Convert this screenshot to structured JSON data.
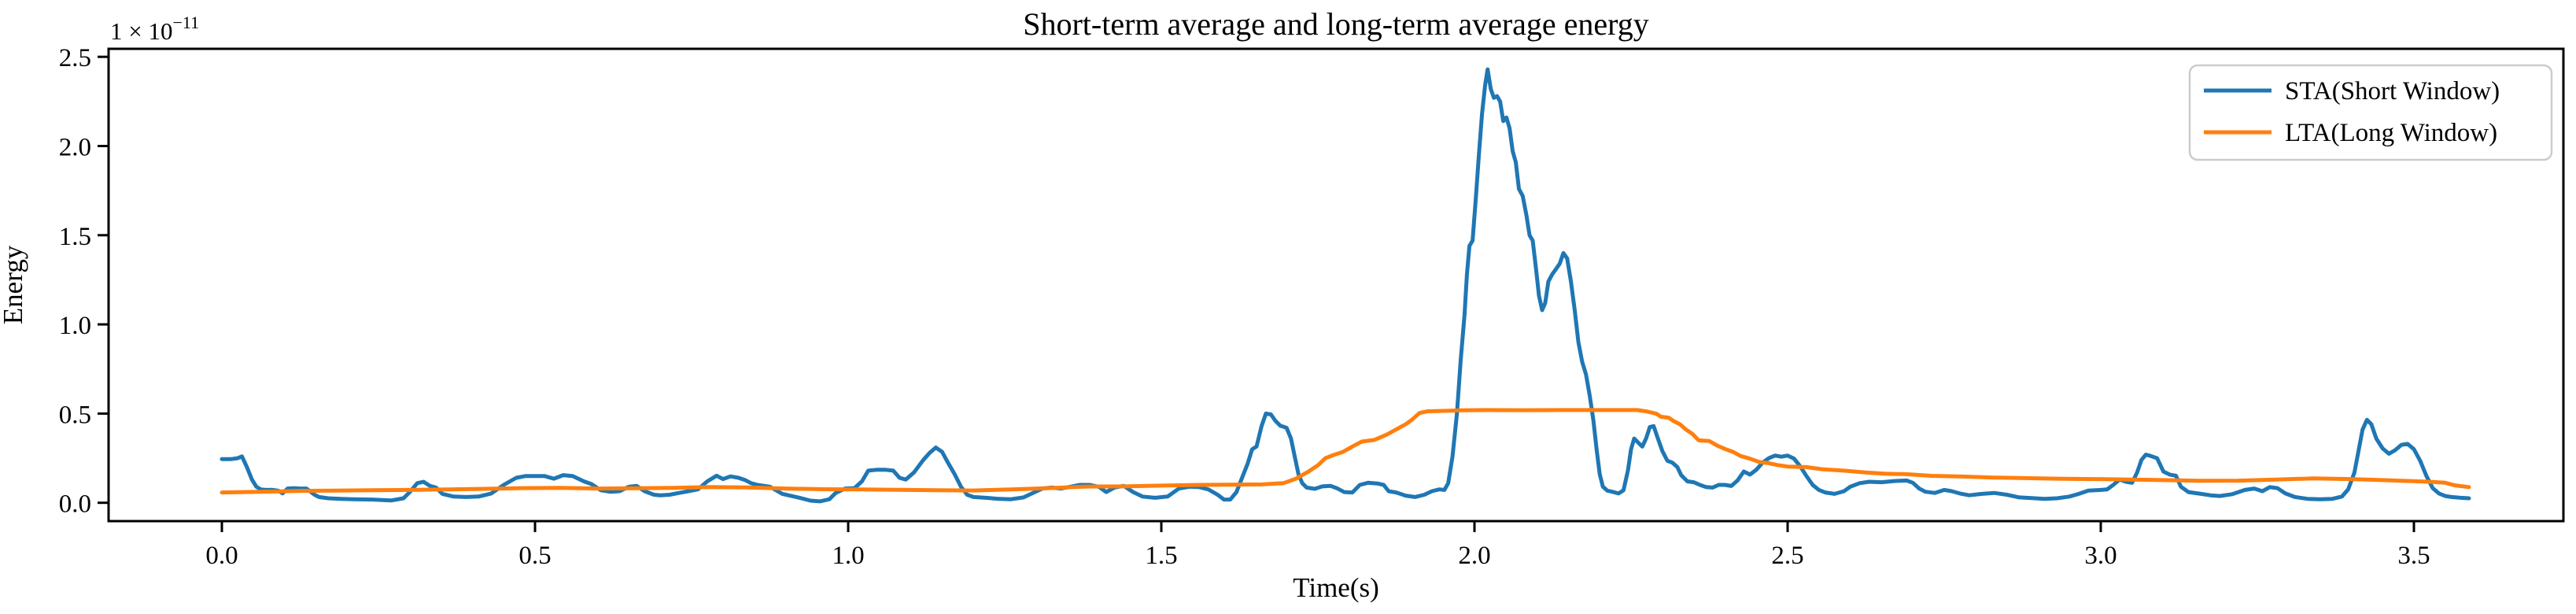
{
  "figure": {
    "title": "Short-term average and long-term average energy",
    "xlabel": "Time(s)",
    "ylabel": "Energy",
    "offset_base": "1 × 10",
    "offset_exponent": "−11"
  },
  "legend": {
    "items": [
      {
        "id": "sta",
        "label": "STA(Short Window)",
        "color": "#1f77b4"
      },
      {
        "id": "lta",
        "label": "LTA(Long Window)",
        "color": "#ff7f0e"
      }
    ]
  },
  "chart_data": {
    "type": "line",
    "title": "Short-term average and long-term average energy",
    "xlabel": "Time(s)",
    "ylabel": "Energy",
    "y_offset_factor": "1e-11",
    "grid": false,
    "legend_position": "upper right",
    "xlim": [
      -0.181,
      3.738
    ],
    "ylim": [
      -0.103,
      2.546
    ],
    "xticks": {
      "values": [
        0.0,
        0.5,
        1.0,
        1.5,
        2.0,
        2.5,
        3.0,
        3.5
      ],
      "labels": [
        "0.0",
        "0.5",
        "1.0",
        "1.5",
        "2.0",
        "2.5",
        "3.0",
        "3.5"
      ]
    },
    "yticks": {
      "values": [
        0.0,
        0.5,
        1.0,
        1.5,
        2.0,
        2.5
      ],
      "labels": [
        "0.0",
        "0.5",
        "1.0",
        "1.5",
        "2.0",
        "2.5"
      ]
    },
    "series": [
      {
        "name": "STA(Short Window)",
        "id": "sta",
        "color": "#1f77b4",
        "x": [
          0.0,
          0.015,
          0.025,
          0.032,
          0.04,
          0.048,
          0.055,
          0.062,
          0.07,
          0.08,
          0.09,
          0.097,
          0.105,
          0.115,
          0.125,
          0.135,
          0.148,
          0.155,
          0.17,
          0.19,
          0.21,
          0.24,
          0.27,
          0.29,
          0.3,
          0.312,
          0.322,
          0.332,
          0.342,
          0.352,
          0.37,
          0.39,
          0.41,
          0.43,
          0.45,
          0.47,
          0.485,
          0.5,
          0.515,
          0.53,
          0.545,
          0.56,
          0.578,
          0.59,
          0.605,
          0.62,
          0.635,
          0.65,
          0.662,
          0.675,
          0.69,
          0.7,
          0.715,
          0.73,
          0.745,
          0.76,
          0.775,
          0.79,
          0.8,
          0.812,
          0.825,
          0.835,
          0.845,
          0.855,
          0.875,
          0.895,
          0.92,
          0.94,
          0.955,
          0.97,
          0.98,
          0.995,
          1.01,
          1.022,
          1.032,
          1.045,
          1.06,
          1.072,
          1.082,
          1.092,
          1.105,
          1.12,
          1.13,
          1.14,
          1.15,
          1.16,
          1.17,
          1.18,
          1.19,
          1.2,
          1.22,
          1.24,
          1.26,
          1.28,
          1.295,
          1.31,
          1.325,
          1.34,
          1.355,
          1.37,
          1.385,
          1.4,
          1.412,
          1.425,
          1.44,
          1.455,
          1.47,
          1.49,
          1.51,
          1.528,
          1.545,
          1.56,
          1.575,
          1.59,
          1.6,
          1.61,
          1.62,
          1.63,
          1.638,
          1.645,
          1.652,
          1.66,
          1.667,
          1.675,
          1.682,
          1.69,
          1.7,
          1.707,
          1.713,
          1.719,
          1.725,
          1.732,
          1.745,
          1.757,
          1.77,
          1.78,
          1.792,
          1.805,
          1.817,
          1.83,
          1.845,
          1.855,
          1.863,
          1.875,
          1.89,
          1.905,
          1.92,
          1.932,
          1.944,
          1.952,
          1.958,
          1.965,
          1.972,
          1.978,
          1.984,
          1.988,
          1.992,
          1.997,
          2.002,
          2.007,
          2.012,
          2.017,
          2.021,
          2.026,
          2.031,
          2.036,
          2.041,
          2.046,
          2.051,
          2.056,
          2.061,
          2.066,
          2.071,
          2.077,
          2.083,
          2.088,
          2.093,
          2.098,
          2.103,
          2.108,
          2.113,
          2.118,
          2.124,
          2.13,
          2.136,
          2.142,
          2.148,
          2.154,
          2.16,
          2.166,
          2.172,
          2.178,
          2.184,
          2.19,
          2.195,
          2.2,
          2.205,
          2.212,
          2.22,
          2.23,
          2.238,
          2.245,
          2.25,
          2.255,
          2.262,
          2.268,
          2.274,
          2.28,
          2.286,
          2.292,
          2.3,
          2.308,
          2.316,
          2.324,
          2.33,
          2.34,
          2.35,
          2.36,
          2.37,
          2.38,
          2.39,
          2.4,
          2.41,
          2.42,
          2.43,
          2.44,
          2.45,
          2.46,
          2.47,
          2.48,
          2.49,
          2.5,
          2.51,
          2.52,
          2.53,
          2.54,
          2.55,
          2.56,
          2.575,
          2.59,
          2.6,
          2.615,
          2.63,
          2.65,
          2.67,
          2.69,
          2.7,
          2.71,
          2.72,
          2.735,
          2.75,
          2.762,
          2.775,
          2.79,
          2.81,
          2.83,
          2.85,
          2.87,
          2.89,
          2.91,
          2.93,
          2.95,
          2.965,
          2.98,
          3.0,
          3.01,
          3.02,
          3.03,
          3.04,
          3.05,
          3.058,
          3.065,
          3.072,
          3.08,
          3.09,
          3.1,
          3.11,
          3.12,
          3.128,
          3.14,
          3.16,
          3.175,
          3.19,
          3.21,
          3.23,
          3.245,
          3.258,
          3.27,
          3.282,
          3.295,
          3.31,
          3.33,
          3.35,
          3.37,
          3.385,
          3.395,
          3.405,
          3.412,
          3.418,
          3.425,
          3.432,
          3.44,
          3.45,
          3.46,
          3.47,
          3.48,
          3.49,
          3.5,
          3.51,
          3.52,
          3.53,
          3.54,
          3.55,
          3.56,
          3.575,
          3.588
        ],
        "y": [
          0.245,
          0.245,
          0.25,
          0.26,
          0.2,
          0.13,
          0.09,
          0.075,
          0.072,
          0.073,
          0.068,
          0.053,
          0.08,
          0.082,
          0.08,
          0.08,
          0.045,
          0.032,
          0.025,
          0.022,
          0.02,
          0.018,
          0.013,
          0.025,
          0.06,
          0.11,
          0.118,
          0.095,
          0.085,
          0.05,
          0.035,
          0.032,
          0.035,
          0.052,
          0.1,
          0.14,
          0.15,
          0.15,
          0.15,
          0.135,
          0.155,
          0.15,
          0.12,
          0.105,
          0.07,
          0.062,
          0.065,
          0.09,
          0.095,
          0.065,
          0.045,
          0.042,
          0.045,
          0.055,
          0.065,
          0.075,
          0.12,
          0.152,
          0.133,
          0.148,
          0.14,
          0.128,
          0.11,
          0.1,
          0.09,
          0.05,
          0.03,
          0.012,
          0.008,
          0.02,
          0.055,
          0.08,
          0.082,
          0.12,
          0.18,
          0.185,
          0.185,
          0.18,
          0.14,
          0.13,
          0.17,
          0.24,
          0.28,
          0.31,
          0.285,
          0.22,
          0.16,
          0.09,
          0.045,
          0.032,
          0.028,
          0.022,
          0.02,
          0.03,
          0.055,
          0.08,
          0.085,
          0.08,
          0.09,
          0.1,
          0.1,
          0.09,
          0.06,
          0.085,
          0.095,
          0.06,
          0.035,
          0.028,
          0.035,
          0.08,
          0.09,
          0.088,
          0.075,
          0.045,
          0.018,
          0.018,
          0.06,
          0.15,
          0.22,
          0.3,
          0.315,
          0.43,
          0.5,
          0.495,
          0.46,
          0.432,
          0.42,
          0.36,
          0.26,
          0.16,
          0.11,
          0.085,
          0.078,
          0.092,
          0.095,
          0.082,
          0.06,
          0.058,
          0.1,
          0.112,
          0.108,
          0.1,
          0.065,
          0.058,
          0.04,
          0.032,
          0.045,
          0.065,
          0.075,
          0.072,
          0.11,
          0.26,
          0.5,
          0.8,
          1.05,
          1.28,
          1.44,
          1.47,
          1.7,
          1.95,
          2.18,
          2.34,
          2.43,
          2.32,
          2.27,
          2.28,
          2.25,
          2.14,
          2.16,
          2.1,
          1.97,
          1.91,
          1.76,
          1.72,
          1.61,
          1.5,
          1.47,
          1.32,
          1.16,
          1.08,
          1.12,
          1.24,
          1.28,
          1.31,
          1.34,
          1.4,
          1.37,
          1.24,
          1.08,
          0.9,
          0.79,
          0.72,
          0.6,
          0.46,
          0.3,
          0.16,
          0.09,
          0.068,
          0.062,
          0.052,
          0.07,
          0.18,
          0.3,
          0.36,
          0.335,
          0.315,
          0.36,
          0.425,
          0.43,
          0.37,
          0.29,
          0.235,
          0.225,
          0.2,
          0.155,
          0.12,
          0.115,
          0.1,
          0.088,
          0.085,
          0.1,
          0.1,
          0.094,
          0.125,
          0.175,
          0.158,
          0.185,
          0.225,
          0.25,
          0.265,
          0.258,
          0.265,
          0.248,
          0.205,
          0.15,
          0.1,
          0.072,
          0.058,
          0.05,
          0.065,
          0.09,
          0.11,
          0.118,
          0.115,
          0.122,
          0.125,
          0.112,
          0.08,
          0.062,
          0.055,
          0.072,
          0.065,
          0.052,
          0.042,
          0.05,
          0.055,
          0.045,
          0.03,
          0.026,
          0.022,
          0.025,
          0.035,
          0.05,
          0.068,
          0.072,
          0.075,
          0.1,
          0.13,
          0.118,
          0.112,
          0.17,
          0.24,
          0.27,
          0.262,
          0.25,
          0.175,
          0.158,
          0.152,
          0.09,
          0.06,
          0.05,
          0.042,
          0.038,
          0.048,
          0.072,
          0.08,
          0.065,
          0.088,
          0.082,
          0.052,
          0.032,
          0.022,
          0.02,
          0.022,
          0.035,
          0.075,
          0.17,
          0.3,
          0.41,
          0.465,
          0.44,
          0.36,
          0.305,
          0.275,
          0.295,
          0.325,
          0.33,
          0.3,
          0.235,
          0.15,
          0.082,
          0.052,
          0.038,
          0.032,
          0.028,
          0.025
        ]
      },
      {
        "name": "LTA(Long Window)",
        "id": "lta",
        "color": "#ff7f0e",
        "x": [
          0.0,
          0.06,
          0.12,
          0.18,
          0.24,
          0.3,
          0.36,
          0.42,
          0.48,
          0.54,
          0.6,
          0.66,
          0.72,
          0.78,
          0.84,
          0.9,
          0.96,
          1.02,
          1.08,
          1.14,
          1.2,
          1.26,
          1.32,
          1.38,
          1.44,
          1.5,
          1.56,
          1.62,
          1.66,
          1.695,
          1.715,
          1.735,
          1.75,
          1.762,
          1.775,
          1.79,
          1.805,
          1.82,
          1.84,
          1.86,
          1.877,
          1.89,
          1.9,
          1.912,
          1.925,
          1.95,
          1.98,
          2.02,
          2.08,
          2.14,
          2.2,
          2.26,
          2.275,
          2.29,
          2.298,
          2.31,
          2.318,
          2.328,
          2.338,
          2.348,
          2.358,
          2.375,
          2.388,
          2.4,
          2.413,
          2.425,
          2.44,
          2.455,
          2.47,
          2.483,
          2.5,
          2.53,
          2.555,
          2.59,
          2.625,
          2.655,
          2.69,
          2.73,
          2.78,
          2.83,
          2.88,
          2.93,
          2.99,
          3.05,
          3.1,
          3.16,
          3.22,
          3.28,
          3.34,
          3.4,
          3.45,
          3.5,
          3.53,
          3.55,
          3.565,
          3.588
        ],
        "y": [
          0.058,
          0.062,
          0.066,
          0.068,
          0.07,
          0.072,
          0.075,
          0.078,
          0.082,
          0.084,
          0.08,
          0.081,
          0.084,
          0.088,
          0.086,
          0.08,
          0.076,
          0.075,
          0.073,
          0.07,
          0.069,
          0.075,
          0.082,
          0.091,
          0.092,
          0.096,
          0.1,
          0.102,
          0.103,
          0.11,
          0.135,
          0.175,
          0.21,
          0.25,
          0.268,
          0.285,
          0.315,
          0.343,
          0.352,
          0.382,
          0.415,
          0.44,
          0.465,
          0.503,
          0.513,
          0.515,
          0.518,
          0.52,
          0.519,
          0.52,
          0.52,
          0.52,
          0.512,
          0.5,
          0.482,
          0.477,
          0.458,
          0.44,
          0.41,
          0.386,
          0.35,
          0.346,
          0.32,
          0.302,
          0.285,
          0.262,
          0.247,
          0.228,
          0.222,
          0.212,
          0.203,
          0.2,
          0.188,
          0.18,
          0.17,
          0.163,
          0.16,
          0.151,
          0.147,
          0.141,
          0.138,
          0.135,
          0.133,
          0.13,
          0.127,
          0.123,
          0.124,
          0.13,
          0.137,
          0.133,
          0.127,
          0.121,
          0.117,
          0.112,
          0.098,
          0.088
        ]
      }
    ]
  }
}
